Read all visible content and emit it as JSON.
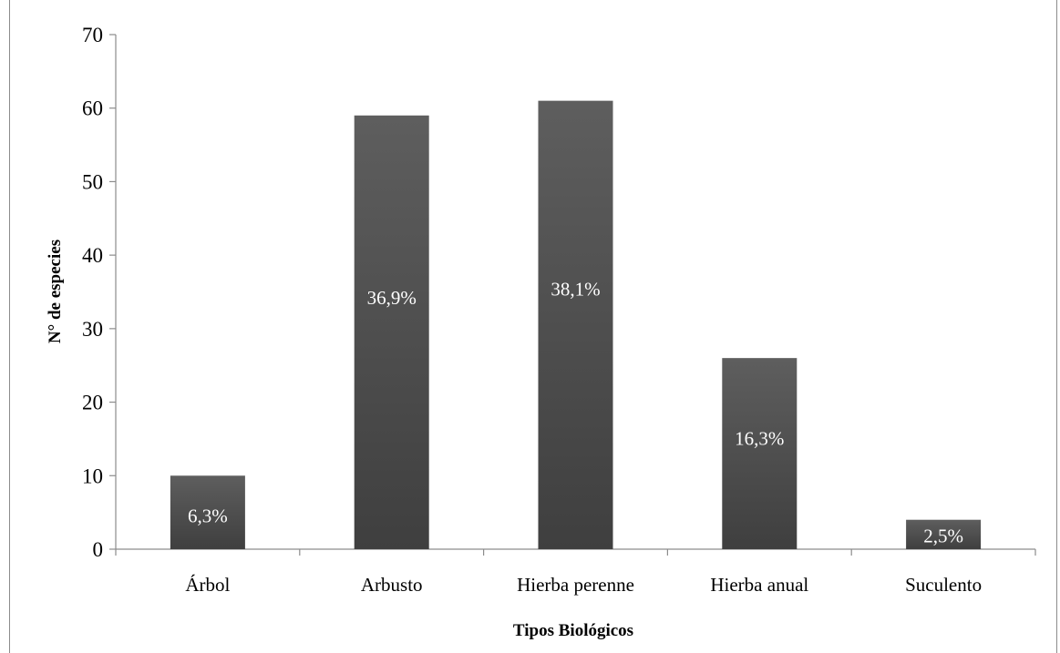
{
  "chart_data": {
    "type": "bar",
    "categories": [
      "Árbol",
      "Arbusto",
      "Hierba perenne",
      "Hierba anual",
      "Suculento"
    ],
    "values": [
      10,
      59,
      61,
      26,
      4
    ],
    "data_labels": [
      "6,3%",
      "36,9%",
      "38,1%",
      "16,3%",
      "2,5%"
    ],
    "xlabel": "Tipos Biológicos",
    "ylabel": "N° de especies",
    "ylim": [
      0,
      70
    ],
    "yticks": [
      0,
      10,
      20,
      30,
      40,
      50,
      60,
      70
    ],
    "grid": false,
    "legend": "none",
    "colors": {
      "bar_top": "#5e5e5e",
      "bar_bottom": "#3f3f3f",
      "axis": "#8c8c8c"
    }
  }
}
